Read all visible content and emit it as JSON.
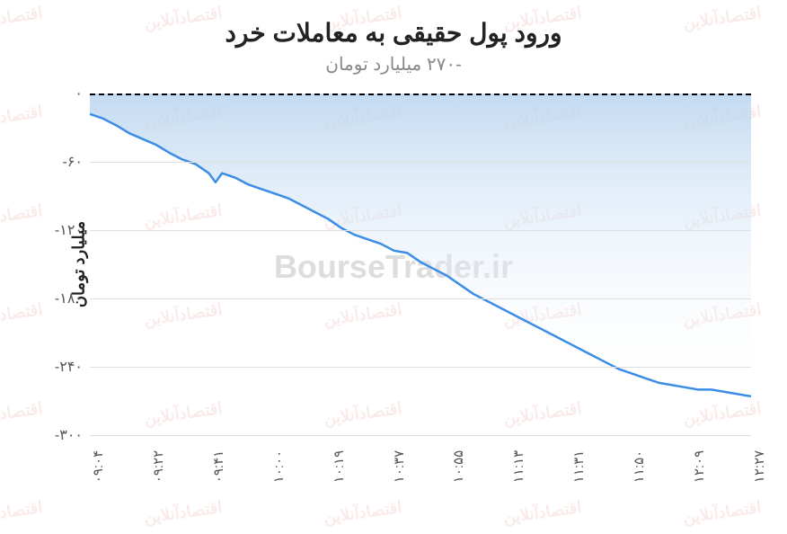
{
  "chart": {
    "type": "area",
    "title": "ورود پول حقیقی به معاملات خرد",
    "title_fontsize": 28,
    "title_color": "#222222",
    "subtitle": "-۲۷۰ میلیارد تومان",
    "subtitle_fontsize": 20,
    "subtitle_color": "#888888",
    "y_axis_title": "میلیارد تومان",
    "background_color": "#ffffff",
    "grid_color": "#e0e0e0",
    "zero_line_color": "#000000",
    "zero_line_dash": "6,5",
    "line_color": "#3b8de6",
    "line_width": 2.5,
    "fill_top_color": "#b8d4ef",
    "fill_bottom_color": "#ffffff",
    "fill_opacity": 0.85,
    "ylim": [
      -300,
      0
    ],
    "ytick_step": 60,
    "y_ticks": [
      {
        "value": 0,
        "label": "۰"
      },
      {
        "value": -60,
        "label": "-۶۰"
      },
      {
        "value": -120,
        "label": "-۱۲۰"
      },
      {
        "value": -180,
        "label": "-۱۸۰"
      },
      {
        "value": -240,
        "label": "-۲۴۰"
      },
      {
        "value": -300,
        "label": "-۳۰۰"
      }
    ],
    "x_ticks": [
      "۰۹:۰۴",
      "۰۹:۲۲",
      "۰۹:۴۱",
      "۱۰:۰۰",
      "۱۰:۱۹",
      "۱۰:۳۷",
      "۱۰:۵۵",
      "۱۱:۱۳",
      "۱۱:۳۱",
      "۱۱:۵۰",
      "۱۲:۰۹",
      "۱۲:۲۷"
    ],
    "x_tick_fontsize": 15,
    "y_tick_fontsize": 16,
    "series": {
      "x_fraction_and_value": [
        [
          0.0,
          -18
        ],
        [
          0.02,
          -22
        ],
        [
          0.04,
          -28
        ],
        [
          0.06,
          -35
        ],
        [
          0.08,
          -40
        ],
        [
          0.1,
          -45
        ],
        [
          0.12,
          -52
        ],
        [
          0.14,
          -58
        ],
        [
          0.16,
          -62
        ],
        [
          0.18,
          -70
        ],
        [
          0.19,
          -78
        ],
        [
          0.2,
          -70
        ],
        [
          0.22,
          -74
        ],
        [
          0.24,
          -80
        ],
        [
          0.26,
          -84
        ],
        [
          0.28,
          -88
        ],
        [
          0.3,
          -92
        ],
        [
          0.32,
          -98
        ],
        [
          0.34,
          -104
        ],
        [
          0.36,
          -110
        ],
        [
          0.38,
          -118
        ],
        [
          0.4,
          -124
        ],
        [
          0.42,
          -128
        ],
        [
          0.44,
          -132
        ],
        [
          0.46,
          -138
        ],
        [
          0.48,
          -140
        ],
        [
          0.5,
          -148
        ],
        [
          0.52,
          -154
        ],
        [
          0.54,
          -160
        ],
        [
          0.56,
          -168
        ],
        [
          0.58,
          -176
        ],
        [
          0.6,
          -182
        ],
        [
          0.62,
          -188
        ],
        [
          0.64,
          -194
        ],
        [
          0.66,
          -200
        ],
        [
          0.68,
          -206
        ],
        [
          0.7,
          -212
        ],
        [
          0.72,
          -218
        ],
        [
          0.74,
          -224
        ],
        [
          0.76,
          -230
        ],
        [
          0.78,
          -236
        ],
        [
          0.8,
          -242
        ],
        [
          0.82,
          -246
        ],
        [
          0.84,
          -250
        ],
        [
          0.86,
          -254
        ],
        [
          0.88,
          -256
        ],
        [
          0.9,
          -258
        ],
        [
          0.92,
          -260
        ],
        [
          0.94,
          -260
        ],
        [
          0.96,
          -262
        ],
        [
          0.98,
          -264
        ],
        [
          1.0,
          -266
        ]
      ]
    }
  },
  "watermarks": {
    "side_text": "اقتصادآنلاین",
    "center_text": "BourseTrader.ir",
    "rows": 6,
    "cols": 5
  }
}
